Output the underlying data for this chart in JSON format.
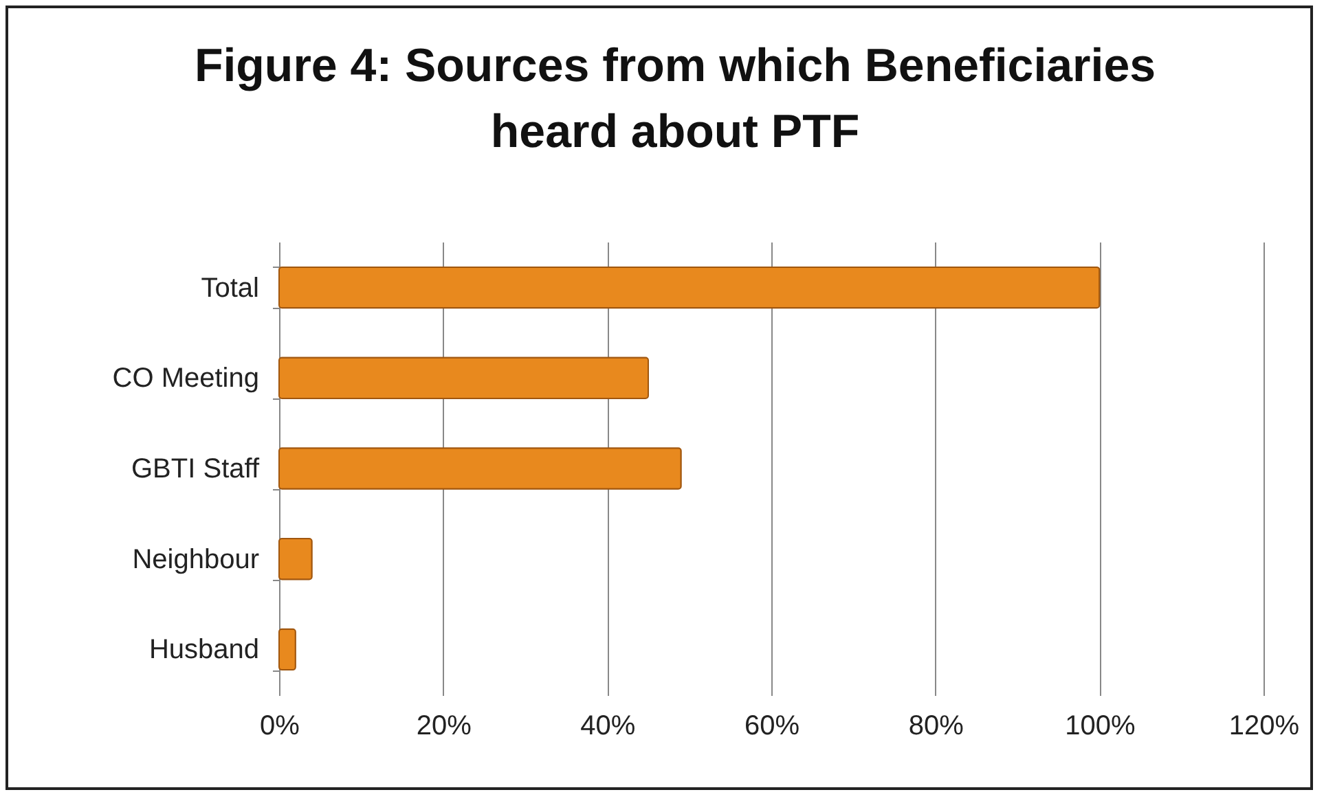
{
  "chart_data": {
    "type": "bar",
    "orientation": "horizontal",
    "title": "Figure 4: Sources from which Beneficiaries\nheard about PTF",
    "categories": [
      "Total",
      "CO Meeting",
      "GBTI Staff",
      "Neighbour",
      "Husband"
    ],
    "values": [
      100,
      45,
      49,
      4,
      2
    ],
    "color": "#e8891e",
    "xlim": [
      0,
      120
    ],
    "xticks": [
      {
        "value": 0,
        "label": "0%"
      },
      {
        "value": 20,
        "label": "20%"
      },
      {
        "value": 40,
        "label": "40%"
      },
      {
        "value": 60,
        "label": "60%"
      },
      {
        "value": 80,
        "label": "80%"
      },
      {
        "value": 100,
        "label": "100%"
      },
      {
        "value": 120,
        "label": "120%"
      }
    ],
    "grid": "x"
  }
}
